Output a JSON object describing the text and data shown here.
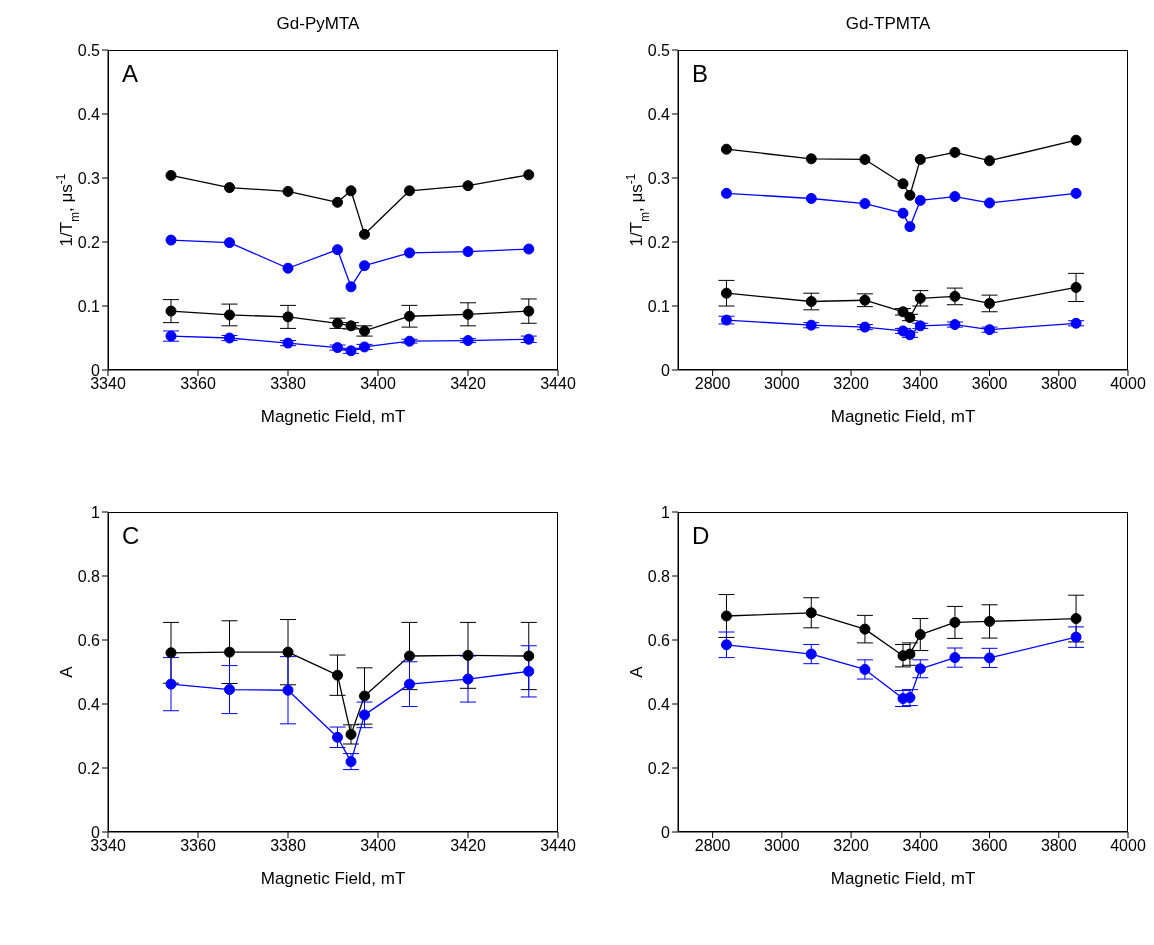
{
  "chart_data": [
    {
      "type": "line",
      "title": "Gd-PyMTA",
      "xlabel": "Magnetic Field, mT",
      "ylabel": "1/T$_{m}$, μs$^{-1}$",
      "annotations": [
        "A"
      ],
      "marker": "circle",
      "line_style": "solid",
      "x": [
        3354,
        3367,
        3380,
        3391,
        3394,
        3397,
        3407,
        3420,
        3433.5
      ],
      "xlim": [
        3340,
        3440
      ],
      "xticks": [
        3340,
        3360,
        3380,
        3400,
        3420,
        3440
      ],
      "ylim": [
        0,
        0.5
      ],
      "yticks": [
        0,
        0.1,
        0.2,
        0.3,
        0.4,
        0.5
      ],
      "series": [
        {
          "color": "#000000",
          "values": [
            0.304,
            0.285,
            0.279,
            0.262,
            0.28,
            0.212,
            0.28,
            0.288,
            0.305
          ]
        },
        {
          "color": "#0000ff",
          "values": [
            0.203,
            0.199,
            0.159,
            0.188,
            0.13,
            0.163,
            0.183,
            0.185,
            0.189
          ]
        },
        {
          "color": "#000000",
          "values": [
            0.092,
            0.086,
            0.083,
            0.073,
            0.069,
            0.061,
            0.084,
            0.087,
            0.092
          ],
          "errors": [
            0.018,
            0.017,
            0.018,
            0.008,
            0.005,
            0.008,
            0.017,
            0.018,
            0.019
          ]
        },
        {
          "color": "#0000ff",
          "values": [
            0.053,
            0.05,
            0.042,
            0.035,
            0.03,
            0.036,
            0.045,
            0.046,
            0.048
          ],
          "errors": [
            0.008,
            0.004,
            0.004,
            0.004,
            0.004,
            0.004,
            0.003,
            0.003,
            0.005
          ]
        }
      ]
    },
    {
      "type": "line",
      "title": "Gd-TPMTA",
      "xlabel": "Magnetic Field, mT",
      "ylabel": "1/T$_{m}$, μs$^{-1}$",
      "annotations": [
        "B"
      ],
      "marker": "circle",
      "line_style": "solid",
      "x": [
        2840,
        3085,
        3240,
        3350,
        3370,
        3400,
        3500,
        3600,
        3850
      ],
      "xlim": [
        2700,
        4000
      ],
      "xticks": [
        2800,
        3000,
        3200,
        3400,
        3600,
        3800,
        4000
      ],
      "ylim": [
        0,
        0.5
      ],
      "yticks": [
        0,
        0.1,
        0.2,
        0.3,
        0.4,
        0.5
      ],
      "series": [
        {
          "color": "#000000",
          "values": [
            0.345,
            0.33,
            0.329,
            0.291,
            0.273,
            0.329,
            0.34,
            0.327,
            0.359
          ]
        },
        {
          "color": "#0000ff",
          "values": [
            0.276,
            0.268,
            0.26,
            0.245,
            0.224,
            0.265,
            0.271,
            0.261,
            0.276
          ]
        },
        {
          "color": "#000000",
          "values": [
            0.12,
            0.107,
            0.109,
            0.091,
            0.082,
            0.112,
            0.115,
            0.104,
            0.129
          ],
          "errors": [
            0.02,
            0.013,
            0.01,
            0.005,
            0.005,
            0.012,
            0.013,
            0.013,
            0.022
          ]
        },
        {
          "color": "#0000ff",
          "values": [
            0.078,
            0.07,
            0.067,
            0.061,
            0.055,
            0.069,
            0.071,
            0.063,
            0.073
          ],
          "errors": [
            0.006,
            0.004,
            0.004,
            0.004,
            0.004,
            0.004,
            0.004,
            0.004,
            0.004
          ]
        }
      ]
    },
    {
      "type": "line",
      "xlabel": "Magnetic Field, mT",
      "ylabel": "A",
      "annotations": [
        "C"
      ],
      "marker": "circle",
      "line_style": "solid",
      "x": [
        3354,
        3367,
        3380,
        3391,
        3394,
        3397,
        3407,
        3420,
        3433.5
      ],
      "xlim": [
        3340,
        3440
      ],
      "xticks": [
        3340,
        3360,
        3380,
        3400,
        3420,
        3440
      ],
      "ylim": [
        0,
        1
      ],
      "yticks": [
        0,
        0.2,
        0.4,
        0.6,
        0.8,
        1
      ],
      "series": [
        {
          "color": "#000000",
          "values": [
            0.56,
            0.562,
            0.562,
            0.49,
            0.305,
            0.425,
            0.55,
            0.552,
            0.55
          ],
          "errors": [
            0.095,
            0.098,
            0.102,
            0.063,
            0.03,
            0.088,
            0.105,
            0.103,
            0.105
          ]
        },
        {
          "color": "#0000ff",
          "values": [
            0.462,
            0.445,
            0.443,
            0.296,
            0.22,
            0.366,
            0.462,
            0.478,
            0.502
          ],
          "errors": [
            0.083,
            0.075,
            0.105,
            0.032,
            0.025,
            0.04,
            0.07,
            0.072,
            0.08
          ]
        }
      ]
    },
    {
      "type": "line",
      "xlabel": "Magnetic Field, mT",
      "ylabel": "A",
      "annotations": [
        "D"
      ],
      "marker": "circle",
      "line_style": "solid",
      "x": [
        2840,
        3085,
        3240,
        3350,
        3370,
        3400,
        3500,
        3600,
        3850
      ],
      "xlim": [
        2700,
        4000
      ],
      "xticks": [
        2800,
        3000,
        3200,
        3400,
        3600,
        3800,
        4000
      ],
      "ylim": [
        0,
        1
      ],
      "yticks": [
        0,
        0.2,
        0.4,
        0.6,
        0.8,
        1
      ],
      "series": [
        {
          "color": "#000000",
          "values": [
            0.675,
            0.685,
            0.634,
            0.551,
            0.556,
            0.617,
            0.655,
            0.658,
            0.667
          ],
          "errors": [
            0.067,
            0.047,
            0.043,
            0.035,
            0.035,
            0.05,
            0.05,
            0.052,
            0.073
          ]
        },
        {
          "color": "#0000ff",
          "values": [
            0.585,
            0.556,
            0.508,
            0.417,
            0.42,
            0.51,
            0.545,
            0.544,
            0.609
          ],
          "errors": [
            0.04,
            0.03,
            0.03,
            0.025,
            0.025,
            0.028,
            0.03,
            0.03,
            0.032
          ]
        }
      ]
    }
  ]
}
